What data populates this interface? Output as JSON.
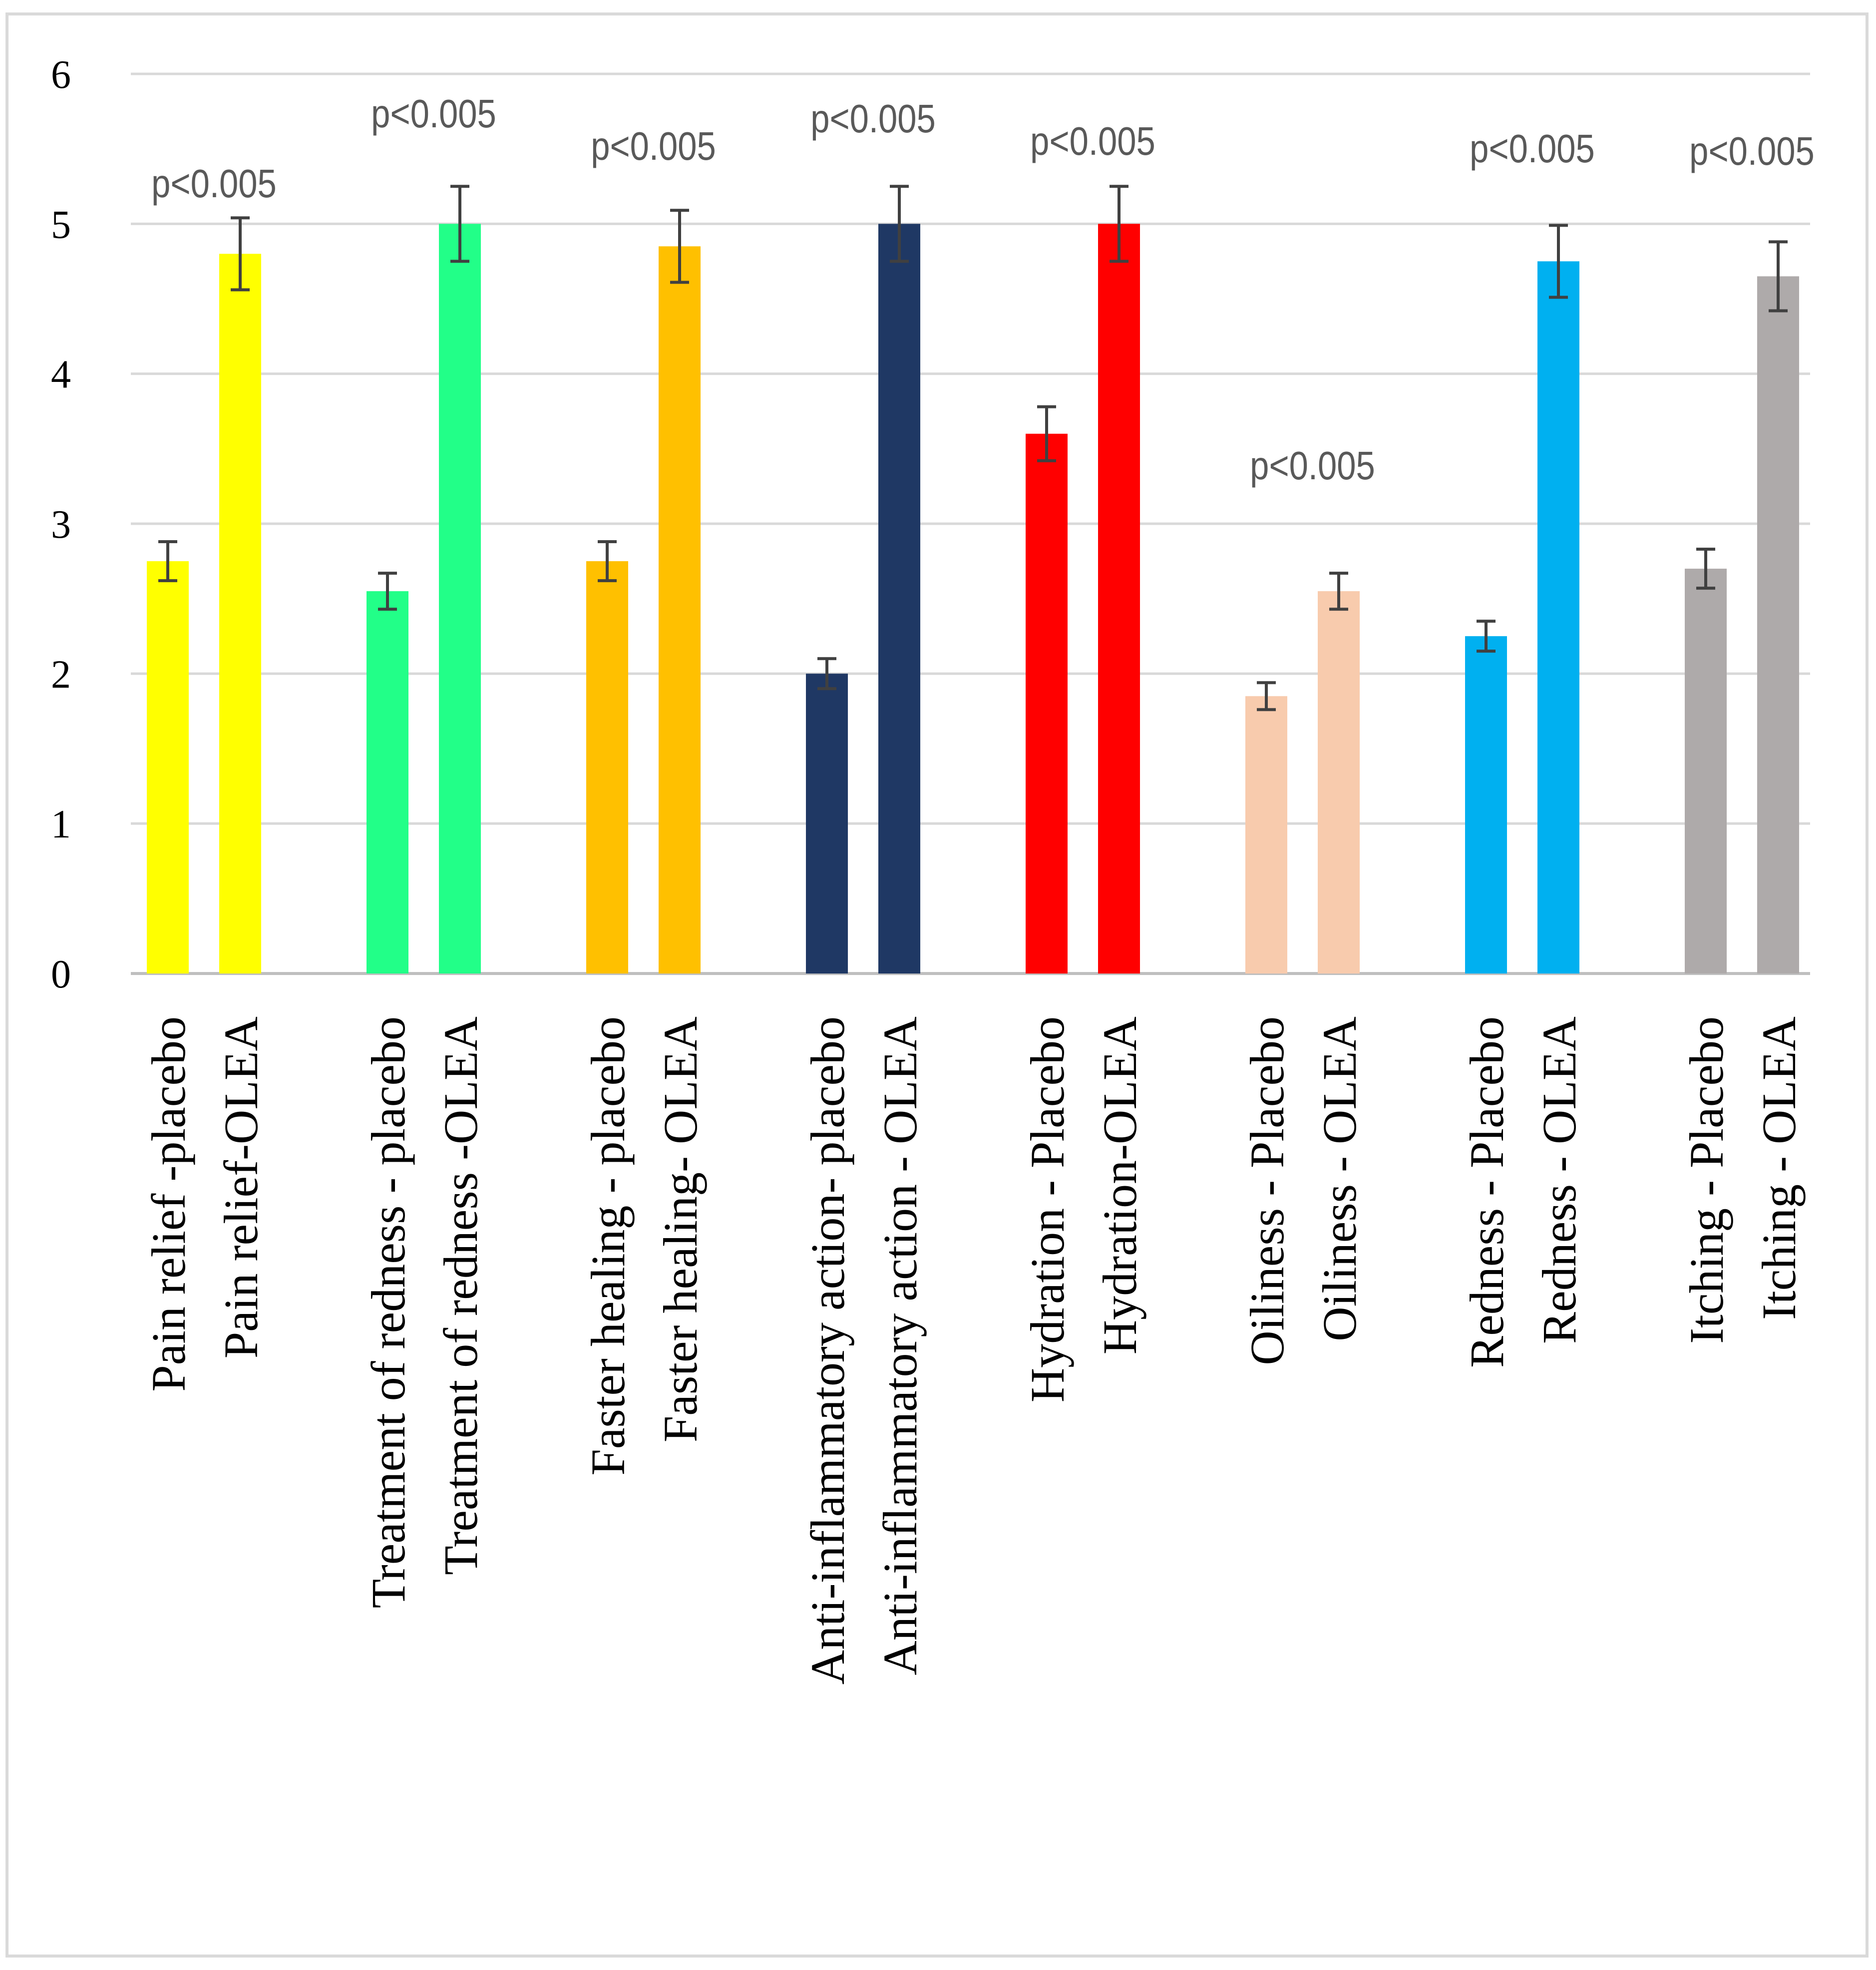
{
  "chart_data": {
    "type": "bar",
    "title": "",
    "xlabel": "",
    "ylabel": "",
    "ylim": [
      0,
      6
    ],
    "yticks": [
      0,
      1,
      2,
      3,
      4,
      5,
      6
    ],
    "grid": true,
    "legend": "none",
    "bars": [
      {
        "label": "Pain relief -placebo",
        "value": 2.75,
        "error": 0.13,
        "color": "#ffff00"
      },
      {
        "label": "Pain relief-OLEA",
        "value": 4.8,
        "error": 0.24,
        "color": "#ffff00"
      },
      {
        "label": "Treatment of redness - placebo",
        "value": 2.55,
        "error": 0.12,
        "color": "#22ff88"
      },
      {
        "label": "Treatment of redness -OLEA",
        "value": 5.0,
        "error": 0.25,
        "color": "#22ff88"
      },
      {
        "label": "Faster healing - placebo",
        "value": 2.75,
        "error": 0.13,
        "color": "#ffc000"
      },
      {
        "label": "Faster healing- OLEA",
        "value": 4.85,
        "error": 0.24,
        "color": "#ffc000"
      },
      {
        "label": "Anti-inflammatory action- placebo",
        "value": 2.0,
        "error": 0.1,
        "color": "#1f3864"
      },
      {
        "label": "Anti-inflammatory action - OLEA",
        "value": 5.0,
        "error": 0.25,
        "color": "#1f3864"
      },
      {
        "label": "Hydration - Placebo",
        "value": 3.6,
        "error": 0.18,
        "color": "#ff0000"
      },
      {
        "label": "Hydration-OLEA",
        "value": 5.0,
        "error": 0.25,
        "color": "#ff0000"
      },
      {
        "label": "Oiliness - Placebo",
        "value": 1.85,
        "error": 0.09,
        "color": "#f8cbad"
      },
      {
        "label": "Oiliness - OLEA",
        "value": 2.55,
        "error": 0.12,
        "color": "#f8cbad"
      },
      {
        "label": "Redness - Placebo",
        "value": 2.25,
        "error": 0.1,
        "color": "#00b0f0"
      },
      {
        "label": "Redness - OLEA",
        "value": 4.75,
        "error": 0.24,
        "color": "#00b0f0"
      },
      {
        "label": "Itching - Placebo",
        "value": 2.7,
        "error": 0.13,
        "color": "#aeaaaa"
      },
      {
        "label": "Itching - OLEA",
        "value": 4.65,
        "error": 0.23,
        "color": "#aeaaaa"
      }
    ],
    "annotations": [
      {
        "text": "p<0.005",
        "group": 0
      },
      {
        "text": "p<0.005",
        "group": 1
      },
      {
        "text": "p<0.005",
        "group": 2
      },
      {
        "text": "p<0.005",
        "group": 3
      },
      {
        "text": "p<0.005",
        "group": 4
      },
      {
        "text": "p<0.005",
        "group": 5
      },
      {
        "text": "p<0.005",
        "group": 6
      },
      {
        "text": "p<0.005",
        "group": 7
      }
    ],
    "colors": {
      "grid": "#d9d9d9",
      "axis": "#bfbfbf",
      "error_bar": "#404040",
      "border": "#d9d9d9",
      "annotation": "#595959"
    }
  }
}
